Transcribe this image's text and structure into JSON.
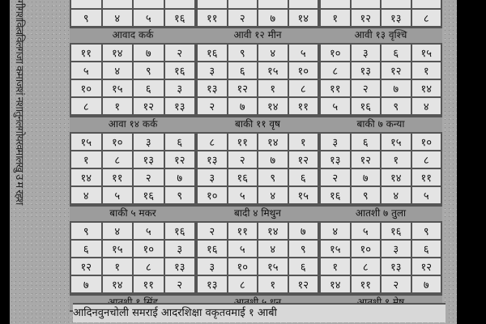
{
  "margin_text": "गीगशवित्वविलगजा कमाजशं नशातुनलगोयरवमालखु उ म रहश",
  "top_partial_row": [
    [
      9,
      4,
      5,
      16
    ],
    [
      11,
      2,
      7,
      14
    ],
    [
      1,
      12,
      13,
      8
    ]
  ],
  "bands": [
    {
      "headers": [
        "आवाद कर्क",
        "आवी १२ मीन",
        "आवी १३ वृश्चि"
      ],
      "squares": [
        [
          [
            11,
            14,
            7,
            2
          ],
          [
            5,
            4,
            9,
            16
          ],
          [
            10,
            15,
            6,
            3
          ],
          [
            8,
            1,
            12,
            13
          ]
        ],
        [
          [
            16,
            9,
            4,
            5
          ],
          [
            3,
            6,
            15,
            10
          ],
          [
            13,
            12,
            1,
            8
          ],
          [
            2,
            7,
            14,
            11
          ]
        ],
        [
          [
            10,
            3,
            6,
            15
          ],
          [
            8,
            13,
            12,
            1
          ],
          [
            11,
            2,
            7,
            14
          ],
          [
            5,
            16,
            9,
            4
          ]
        ]
      ]
    },
    {
      "headers": [
        "आवा १४ कर्क",
        "बाकी ११ वृष",
        "बाकी ७ कन्या"
      ],
      "squares": [
        [
          [
            15,
            10,
            3,
            6
          ],
          [
            1,
            8,
            13,
            12
          ],
          [
            14,
            11,
            2,
            7
          ],
          [
            4,
            5,
            16,
            9
          ]
        ],
        [
          [
            8,
            11,
            14,
            1
          ],
          [
            13,
            2,
            7,
            12
          ],
          [
            3,
            16,
            9,
            6
          ],
          [
            10,
            5,
            4,
            15
          ]
        ],
        [
          [
            3,
            6,
            15,
            10
          ],
          [
            13,
            12,
            1,
            8
          ],
          [
            2,
            7,
            14,
            11
          ],
          [
            16,
            9,
            4,
            5
          ]
        ]
      ]
    },
    {
      "headers": [
        "बाकी ५ मकर",
        "बादी ४ मिथुन",
        "आतशी ७ तुला"
      ],
      "squares": [
        [
          [
            9,
            4,
            5,
            16
          ],
          [
            6,
            15,
            10,
            3
          ],
          [
            12,
            1,
            8,
            13
          ],
          [
            7,
            14,
            11,
            2
          ]
        ],
        [
          [
            2,
            11,
            14,
            7
          ],
          [
            16,
            5,
            4,
            9
          ],
          [
            3,
            10,
            15,
            6
          ],
          [
            13,
            8,
            1,
            12
          ]
        ],
        [
          [
            4,
            5,
            16,
            9
          ],
          [
            15,
            10,
            3,
            6
          ],
          [
            1,
            8,
            13,
            12
          ],
          [
            14,
            11,
            2,
            7
          ]
        ]
      ]
    }
  ],
  "bottom_headers": [
    "आतशी १ सिंह",
    "आतशी ५ धन",
    "आतशी ९ मेष"
  ],
  "bottom_text": "आदिनवुनचोली समराई आदरशिक्षा वकृतवमाई १ आबी"
}
